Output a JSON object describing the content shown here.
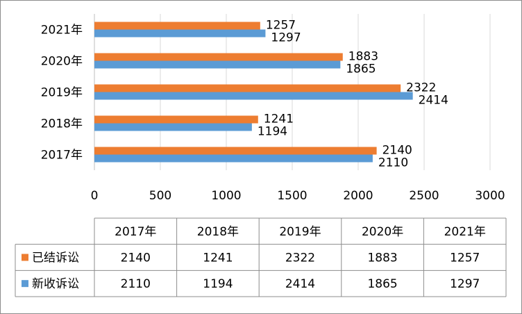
{
  "chart_data": {
    "type": "bar",
    "orientation": "horizontal",
    "categories": [
      "2017年",
      "2018年",
      "2019年",
      "2020年",
      "2021年"
    ],
    "series": [
      {
        "name": "已结诉讼",
        "values": [
          2140,
          1241,
          2322,
          1883,
          1257
        ],
        "color": "#ED7D31"
      },
      {
        "name": "新收诉讼",
        "values": [
          2110,
          1194,
          2414,
          1865,
          1297
        ],
        "color": "#5B9BD5"
      }
    ],
    "xlim": [
      0,
      3000
    ],
    "xticks": [
      "0",
      "500",
      "1000",
      "1500",
      "2000",
      "2500",
      "3000"
    ],
    "grid": true,
    "data_labels": true,
    "data_table": true
  }
}
